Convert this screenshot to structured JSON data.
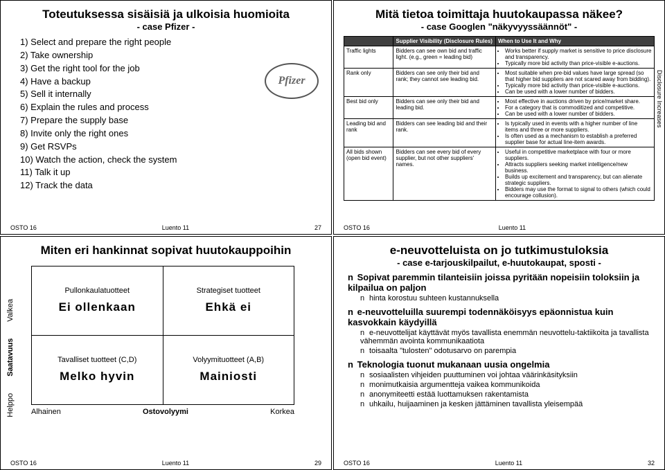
{
  "footer": {
    "left": "OSTO 16",
    "mid": "Luento 11"
  },
  "s1": {
    "title": "Toteutuksessa sisäisiä ja ulkoisia huomioita",
    "subtitle": "- case Pfizer -",
    "items": [
      "1) Select and prepare the right people",
      "2) Take ownership",
      "3) Get the right tool for the job",
      "4) Have a backup",
      "5) Sell it internally",
      "6) Explain the rules and process",
      "7) Prepare the supply base",
      "8) Invite only the right ones",
      "9) Get RSVPs",
      "10) Watch the action, check the system",
      "11) Talk it up",
      "12) Track the data"
    ],
    "logo": "Pfizer",
    "page": "27"
  },
  "s2": {
    "title": "Mitä tietoa toimittaja huutokaupassa näkee?",
    "subtitle": "- case Googlen \"näkyvyyssäännöt\" -",
    "side": "Disclosure Increases",
    "header": [
      "",
      "Supplier Visibility (Disclosure Rules)",
      "When to Use It and Why"
    ],
    "rows": [
      {
        "c0": "Traffic lights",
        "c1": "Bidders can see own bid and traffic light. (e.g., green = leading bid)",
        "c2": [
          "Works better if supply market is sensitive to price disclosure and transparency.",
          "Typically more bid activity than price-visible e-auctions."
        ]
      },
      {
        "c0": "Rank only",
        "c1": "Bidders can see only their bid and rank; they cannot see leading bid.",
        "c2": [
          "Most suitable when pre-bid values have large spread (so that higher bid suppliers are not scared away from bidding).",
          "Typically more bid activity than price-visible e-auctions.",
          "Can be used with a lower number of bidders."
        ]
      },
      {
        "c0": "Best bid only",
        "c1": "Bidders can see only their bid and leading bid.",
        "c2": [
          "Most effective in auctions driven by price/market share.",
          "For a category that is commoditized and competitive.",
          "Can be used with a lower number of bidders."
        ]
      },
      {
        "c0": "Leading bid and rank",
        "c1": "Bidders can see leading bid and their rank.",
        "c2": [
          "Is typically used in events with a higher number of line items and three or more suppliers.",
          "Is often used as a mechanism to establish a preferred supplier base for actual line-item awards."
        ]
      },
      {
        "c0": "All bids shown (open bid event)",
        "c1": "Bidders can see every bid of every supplier, but not other suppliers' names.",
        "c2": [
          "Useful in competitive marketplace with four or more suppliers.",
          "Attracts suppliers seeking market intelligence/new business.",
          "Builds up excitement and transparency, but can alienate strategic suppliers.",
          "Bidders may use the format to signal to others (which could encourage collusion)."
        ]
      }
    ],
    "page": ""
  },
  "s3": {
    "title": "Miten eri hankinnat sopivat huutokauppoihin",
    "yaxis": {
      "low": "Helppo",
      "main": "Saatavuus",
      "high": "Valkea"
    },
    "xaxis": {
      "low": "Alhainen",
      "main": "Ostovolyymi",
      "high": "Korkea"
    },
    "cells": [
      {
        "head": "Pullonkaulatuotteet",
        "big": "Ei ollenkaan"
      },
      {
        "head": "Strategiset tuotteet",
        "big": "Ehkä ei"
      },
      {
        "head": "Tavalliset tuotteet (C,D)",
        "big": "Melko hyvin"
      },
      {
        "head": "Volyymituotteet (A,B)",
        "big": "Mainiosti"
      }
    ],
    "page": "29"
  },
  "s4": {
    "title": "e-neuvotteluista on jo tutkimustuloksia",
    "subtitle": "- case e-tarjouskilpailut, e-huutokaupat, sposti -",
    "b": [
      {
        "lvl": 1,
        "t": "Sopivat paremmin tilanteisiin joissa pyritään nopeisiin toloksiin ja kilpailua on paljon"
      },
      {
        "lvl": 2,
        "t": "hinta korostuu suhteen kustannuksella"
      },
      {
        "lvl": 1,
        "t": "e-neuvotteluilla suurempi todennäköisyys epäonnistua kuin kasvokkain käydyillä"
      },
      {
        "lvl": 2,
        "t": "e-neuvottelijat käyttävät myös tavallista enemmän neuvottelu-taktiikoita ja tavallista vähemmän avointa kommunikaatiota"
      },
      {
        "lvl": 2,
        "t": "toisaalta \"tulosten\" odotusarvo on parempia"
      },
      {
        "lvl": 1,
        "t": "Teknologia tuonut mukanaan uusia ongelmia"
      },
      {
        "lvl": 2,
        "t": "sosiaalisten vihjeiden puuttuminen voi johtaa väärinkäsityksiin"
      },
      {
        "lvl": 2,
        "t": "monimutkaisia argumentteja vaikea kommunikoida"
      },
      {
        "lvl": 2,
        "t": "anonymiteetti estää luottamuksen rakentamista"
      },
      {
        "lvl": 2,
        "t": "uhkailu, huijaaminen ja kesken jättäminen tavallista yleisempää"
      }
    ],
    "page": "32"
  }
}
